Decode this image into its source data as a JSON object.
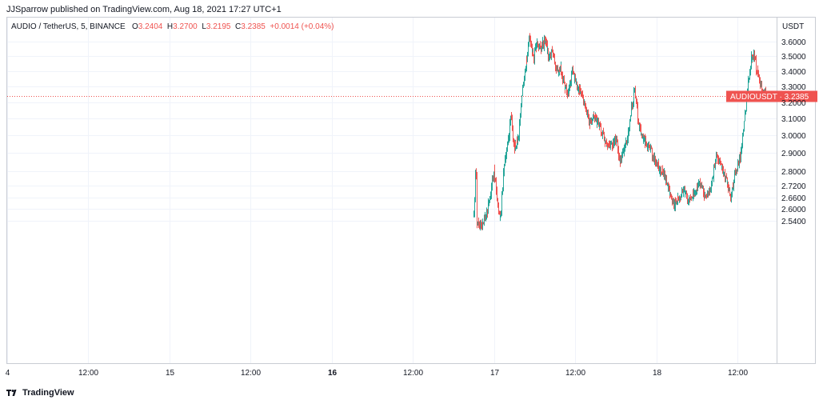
{
  "header": {
    "published": "JJSparrow published on TradingView.com, Aug 18, 2021 17:27 UTC+1"
  },
  "legend": {
    "symbol": "AUDIO / TetherUS, 5, BINANCE",
    "o_key": "O",
    "o_val": "3.2404",
    "h_key": "H",
    "h_val": "3.2700",
    "l_key": "L",
    "l_val": "3.2195",
    "c_key": "C",
    "c_val": "3.2385",
    "change": "+0.0014 (+0.04%)"
  },
  "price_axis": {
    "currency": "USDT"
  },
  "last_price_label": "AUDIOUSDT · 3.2385",
  "branding": {
    "logo_text": "TradingView"
  },
  "colors": {
    "up": "#26a69a",
    "down": "#ef5350",
    "grid": "#f0f3fa",
    "text": "#131722"
  },
  "chart_data": {
    "type": "candlestick",
    "title": "AUDIO / TetherUS, 5, BINANCE",
    "grid": true,
    "scale": "log",
    "ylim": [
      2.52,
      3.62
    ],
    "yticks": [
      3.6,
      3.5,
      3.4,
      3.3,
      3.2,
      3.1,
      3.0,
      2.9,
      2.8,
      2.72,
      2.66,
      2.6,
      2.54
    ],
    "ytick_labels": [
      "3.6000",
      "3.5000",
      "3.4000",
      "3.3000",
      "3.2000",
      "3.1000",
      "3.0000",
      "2.9000",
      "2.8000",
      "2.7200",
      "2.6600",
      "2.6000",
      "2.5400"
    ],
    "xticks": [
      {
        "label": "4",
        "hours": -12,
        "bold": false
      },
      {
        "label": "12:00",
        "hours": 0,
        "bold": false
      },
      {
        "label": "15",
        "hours": 12,
        "bold": false
      },
      {
        "label": "12:00",
        "hours": 24,
        "bold": false
      },
      {
        "label": "16",
        "hours": 36,
        "bold": true
      },
      {
        "label": "12:00",
        "hours": 48,
        "bold": false
      },
      {
        "label": "17",
        "hours": 60,
        "bold": false
      },
      {
        "label": "12:00",
        "hours": 72,
        "bold": false
      },
      {
        "label": "18",
        "hours": 84,
        "bold": false
      },
      {
        "label": "12:00",
        "hours": 96,
        "bold": false
      }
    ],
    "price_path": [
      [
        57.0,
        2.56
      ],
      [
        57.3,
        2.84
      ],
      [
        57.5,
        2.52
      ],
      [
        58.2,
        2.53
      ],
      [
        59.0,
        2.58
      ],
      [
        60.0,
        2.8
      ],
      [
        60.5,
        2.62
      ],
      [
        61.0,
        2.56
      ],
      [
        61.5,
        2.84
      ],
      [
        62.0,
        2.95
      ],
      [
        62.5,
        3.12
      ],
      [
        63.0,
        2.93
      ],
      [
        63.6,
        3.0
      ],
      [
        64.0,
        3.2
      ],
      [
        64.6,
        3.4
      ],
      [
        65.2,
        3.63
      ],
      [
        65.8,
        3.48
      ],
      [
        66.3,
        3.6
      ],
      [
        66.9,
        3.55
      ],
      [
        67.5,
        3.62
      ],
      [
        68.0,
        3.5
      ],
      [
        68.6,
        3.52
      ],
      [
        69.2,
        3.4
      ],
      [
        69.8,
        3.42
      ],
      [
        70.4,
        3.3
      ],
      [
        71.0,
        3.25
      ],
      [
        71.6,
        3.4
      ],
      [
        72.2,
        3.3
      ],
      [
        72.8,
        3.27
      ],
      [
        73.4,
        3.19
      ],
      [
        74.0,
        3.08
      ],
      [
        74.8,
        3.11
      ],
      [
        75.6,
        3.05
      ],
      [
        76.4,
        2.97
      ],
      [
        77.2,
        2.93
      ],
      [
        78.0,
        2.98
      ],
      [
        78.6,
        2.86
      ],
      [
        79.2,
        2.9
      ],
      [
        79.8,
        3.0
      ],
      [
        80.4,
        3.18
      ],
      [
        80.8,
        3.3
      ],
      [
        81.2,
        3.1
      ],
      [
        81.8,
        3.0
      ],
      [
        82.4,
        2.96
      ],
      [
        83.0,
        2.92
      ],
      [
        83.8,
        2.86
      ],
      [
        84.6,
        2.8
      ],
      [
        85.2,
        2.78
      ],
      [
        85.8,
        2.7
      ],
      [
        86.5,
        2.62
      ],
      [
        87.2,
        2.65
      ],
      [
        88.0,
        2.7
      ],
      [
        88.8,
        2.64
      ],
      [
        89.6,
        2.68
      ],
      [
        90.4,
        2.74
      ],
      [
        91.2,
        2.66
      ],
      [
        92.0,
        2.7
      ],
      [
        92.8,
        2.88
      ],
      [
        93.6,
        2.82
      ],
      [
        94.4,
        2.74
      ],
      [
        95.0,
        2.66
      ],
      [
        95.6,
        2.78
      ],
      [
        96.2,
        2.85
      ],
      [
        96.8,
        3.0
      ],
      [
        97.4,
        3.25
      ],
      [
        98.0,
        3.48
      ],
      [
        98.4,
        3.52
      ],
      [
        98.8,
        3.4
      ],
      [
        99.2,
        3.35
      ],
      [
        99.6,
        3.28
      ],
      [
        100.2,
        3.2385
      ]
    ],
    "last_price": 3.2385
  }
}
